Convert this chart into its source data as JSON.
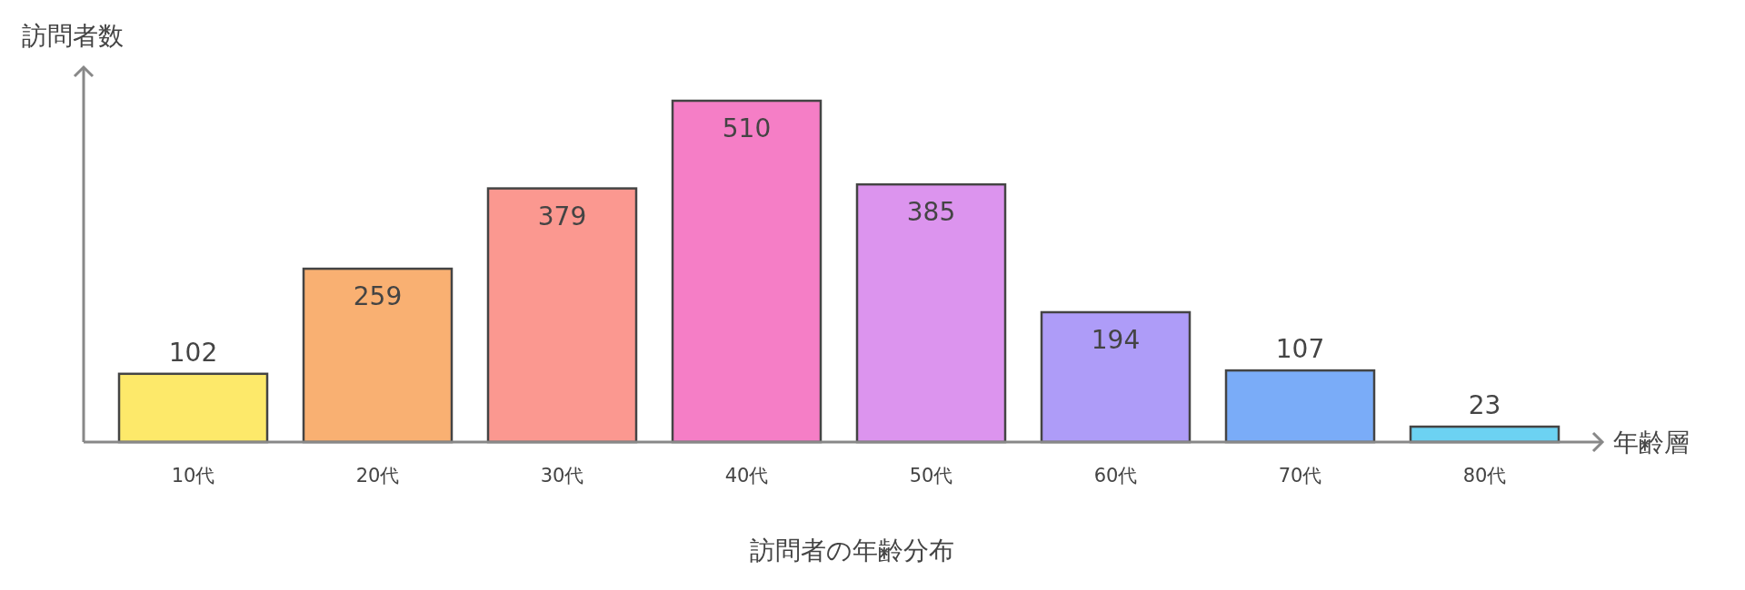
{
  "chart_data": {
    "type": "bar",
    "title": "訪問者の年齢分布",
    "xlabel": "年齢層",
    "ylabel": "訪問者数",
    "categories": [
      "10代",
      "20代",
      "30代",
      "40代",
      "50代",
      "60代",
      "70代",
      "80代"
    ],
    "values": [
      102,
      259,
      379,
      510,
      385,
      194,
      107,
      23
    ],
    "colors": [
      "#fde96a",
      "#f9b072",
      "#fb9890",
      "#f57ec6",
      "#dc94ee",
      "#ae9cf8",
      "#7aacf8",
      "#6cd2f2"
    ],
    "data_labels": true
  }
}
